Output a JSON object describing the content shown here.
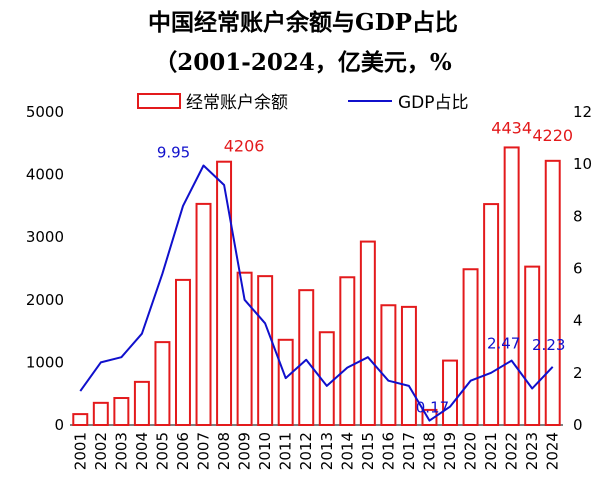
{
  "chart_data": {
    "type": "bar+line",
    "title": "中国经常账户余额与GDP占比",
    "subtitle": "（2001-2024，亿美元，%",
    "categories": [
      "2001",
      "2002",
      "2003",
      "2004",
      "2005",
      "2006",
      "2007",
      "2008",
      "2009",
      "2010",
      "2011",
      "2012",
      "2013",
      "2014",
      "2015",
      "2016",
      "2017",
      "2018",
      "2019",
      "2020",
      "2021",
      "2022",
      "2023",
      "2024"
    ],
    "series": [
      {
        "name": "经常账户余额",
        "type": "bar",
        "axis": "left",
        "color": "#e31a1c",
        "values": [
          174,
          354,
          431,
          689,
          1324,
          2318,
          3532,
          4206,
          2433,
          2378,
          1361,
          2154,
          1482,
          2360,
          2930,
          1913,
          1887,
          241,
          1029,
          2488,
          3529,
          4434,
          2530,
          4220
        ]
      },
      {
        "name": "GDP占比",
        "type": "line",
        "axis": "right",
        "color": "#1010cc",
        "values": [
          1.3,
          2.4,
          2.6,
          3.5,
          5.8,
          8.4,
          9.95,
          9.2,
          4.8,
          3.9,
          1.8,
          2.5,
          1.5,
          2.2,
          2.6,
          1.7,
          1.5,
          0.17,
          0.7,
          1.7,
          2.0,
          2.47,
          1.4,
          2.23
        ]
      }
    ],
    "ylim_left": [
      0,
      5000
    ],
    "yticks_left": [
      0,
      1000,
      2000,
      3000,
      4000,
      5000
    ],
    "ylim_right": [
      0,
      12
    ],
    "yticks_right": [
      0,
      2,
      4,
      6,
      8,
      10,
      12
    ],
    "annotations": [
      {
        "series": "GDP占比",
        "index": 6,
        "text": "9.95"
      },
      {
        "series": "经常账户余额",
        "index": 7,
        "text": "4206"
      },
      {
        "series": "GDP占比",
        "index": 17,
        "text": "0.17"
      },
      {
        "series": "GDP占比",
        "index": 21,
        "text": "2.47"
      },
      {
        "series": "经常账户余额",
        "index": 21,
        "text": "4434"
      },
      {
        "series": "经常账户余额",
        "index": 23,
        "text": "4220"
      },
      {
        "series": "GDP占比",
        "index": 23,
        "text": "2.23"
      }
    ],
    "legend_position": "top"
  }
}
